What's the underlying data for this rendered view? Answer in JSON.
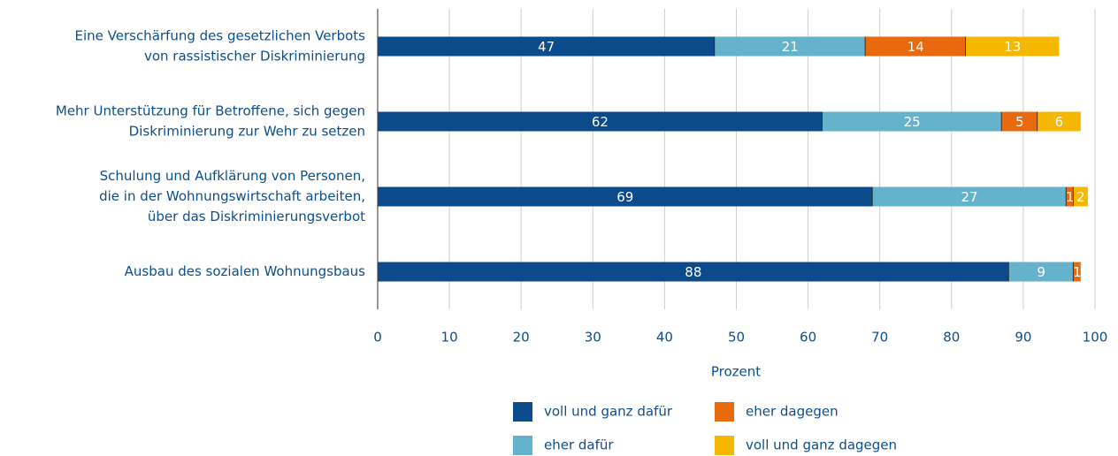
{
  "chart_data": {
    "type": "stacked-barh",
    "categories": [
      [
        "Eine Verschärfung des gesetzlichen Verbots",
        "von rassistischer Diskriminierung"
      ],
      [
        "Mehr Unterstützung für Betroffene, sich gegen",
        "Diskriminierung zur Wehr zu setzen"
      ],
      [
        "Schulung und Aufklärung von Personen,",
        "die in der Wohnungswirtschaft arbeiten,",
        "über das Diskriminierungsverbot"
      ],
      [
        "Ausbau des sozialen Wohnungsbaus"
      ]
    ],
    "series": [
      {
        "name": "voll und ganz dafür",
        "color": "#0b4a8b",
        "values": [
          47,
          62,
          69,
          88
        ]
      },
      {
        "name": "eher dafür",
        "color": "#64b2cb",
        "values": [
          21,
          25,
          27,
          9
        ]
      },
      {
        "name": "eher dagegen",
        "color": "#e8690e",
        "values": [
          14,
          5,
          1,
          1
        ]
      },
      {
        "name": "voll und ganz dagegen",
        "color": "#f5b700",
        "values": [
          13,
          6,
          2,
          null
        ]
      }
    ],
    "xlabel": "Prozent",
    "xlim": [
      0,
      100
    ],
    "xticks": [
      0,
      10,
      20,
      30,
      40,
      50,
      60,
      70,
      80,
      90,
      100
    ],
    "grid": true,
    "legend": "bottom"
  }
}
